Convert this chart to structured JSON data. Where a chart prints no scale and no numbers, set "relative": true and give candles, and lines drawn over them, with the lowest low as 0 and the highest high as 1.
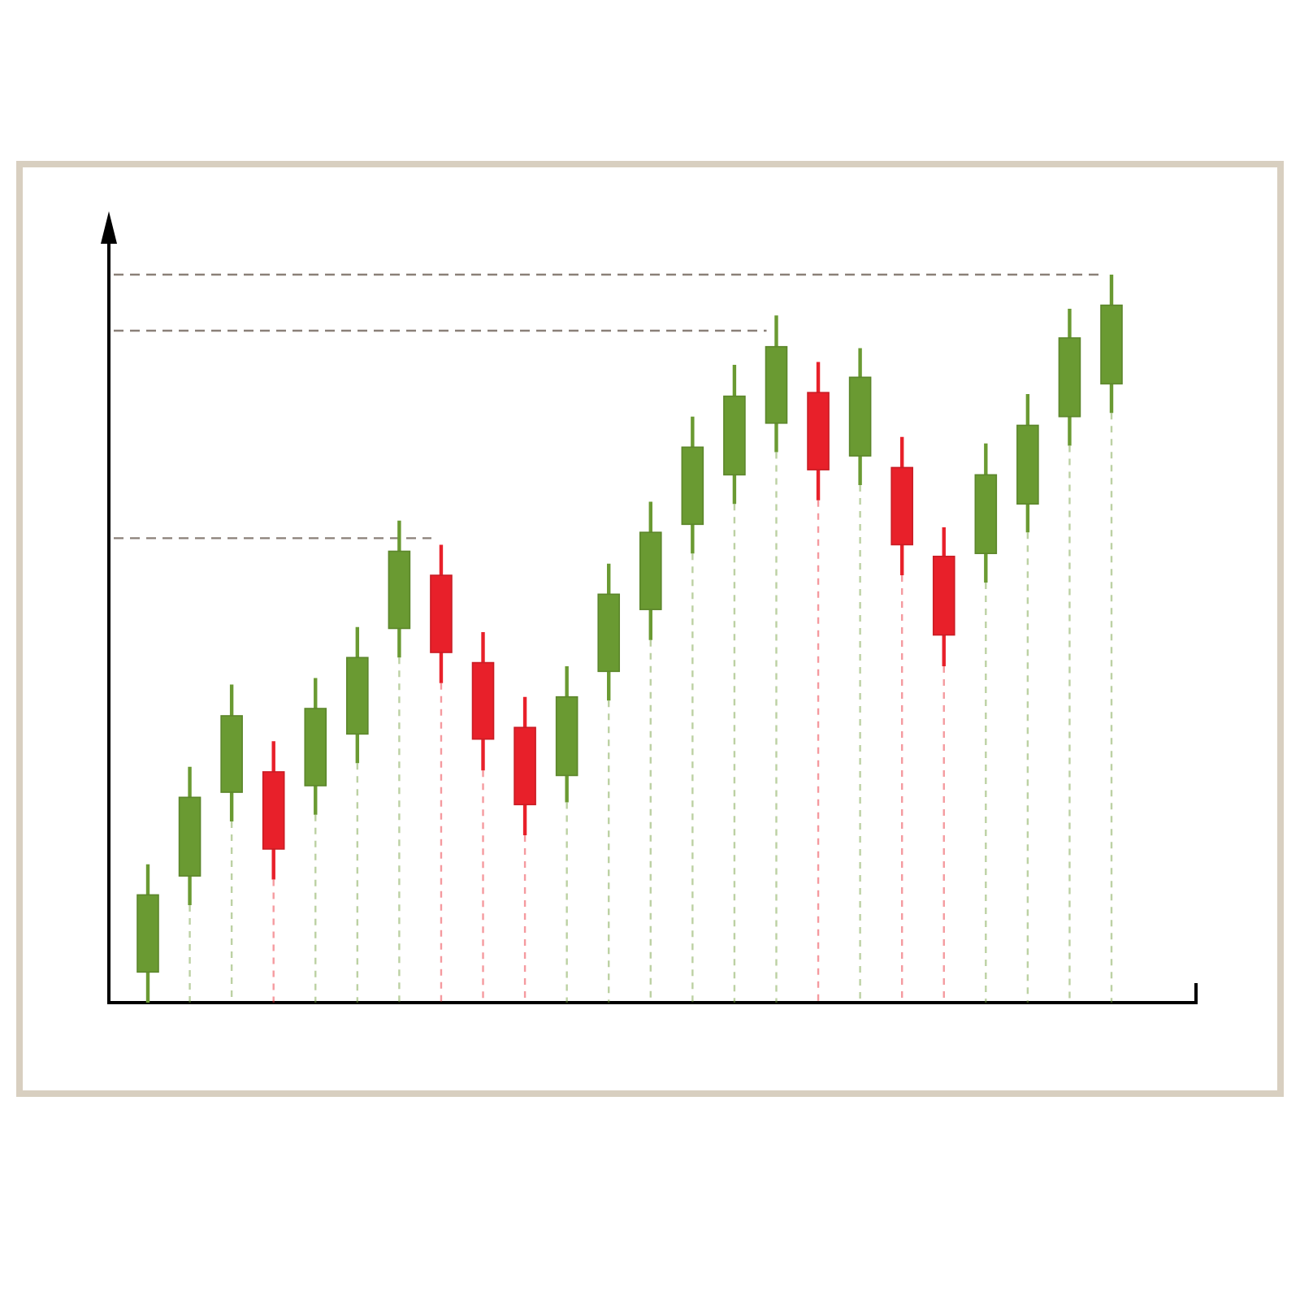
{
  "chart_data": {
    "type": "candlestick",
    "relative": true,
    "grid": "x",
    "categories": [
      null,
      null,
      null,
      null,
      null,
      null,
      null,
      null,
      null,
      null,
      null,
      null,
      null,
      null,
      null,
      null,
      null,
      null,
      null,
      null,
      null,
      null,
      null,
      null
    ],
    "ohlc": [
      [
        0.042,
        0.19,
        0,
        0.148
      ],
      [
        0.174,
        0.324,
        0.134,
        0.282
      ],
      [
        0.289,
        0.437,
        0.249,
        0.394
      ],
      [
        0.317,
        0.359,
        0.169,
        0.211
      ],
      [
        0.298,
        0.446,
        0.258,
        0.404
      ],
      [
        0.369,
        0.516,
        0.329,
        0.474
      ],
      [
        0.514,
        0.662,
        0.474,
        0.62
      ],
      [
        0.587,
        0.629,
        0.439,
        0.481
      ],
      [
        0.467,
        0.509,
        0.319,
        0.362
      ],
      [
        0.378,
        0.42,
        0.23,
        0.272
      ],
      [
        0.312,
        0.462,
        0.275,
        0.42
      ],
      [
        0.455,
        0.603,
        0.415,
        0.561
      ],
      [
        0.54,
        0.688,
        0.498,
        0.646
      ],
      [
        0.657,
        0.805,
        0.617,
        0.763
      ],
      [
        0.725,
        0.876,
        0.685,
        0.833
      ],
      [
        0.796,
        0.944,
        0.756,
        0.901
      ],
      [
        0.838,
        0.88,
        0.69,
        0.732
      ],
      [
        0.751,
        0.899,
        0.711,
        0.859
      ],
      [
        0.735,
        0.777,
        0.587,
        0.629
      ],
      [
        0.613,
        0.653,
        0.462,
        0.505
      ],
      [
        0.617,
        0.768,
        0.577,
        0.725
      ],
      [
        0.685,
        0.836,
        0.646,
        0.793
      ],
      [
        0.805,
        0.953,
        0.765,
        0.913
      ],
      [
        0.85,
        1,
        0.81,
        0.958
      ]
    ],
    "colors": [
      "#6a9a32",
      "#6a9a32",
      "#6a9a32",
      "#e8202a",
      "#6a9a32",
      "#6a9a32",
      "#6a9a32",
      "#e8202a",
      "#e8202a",
      "#e8202a",
      "#6a9a32",
      "#6a9a32",
      "#6a9a32",
      "#6a9a32",
      "#6a9a32",
      "#6a9a32",
      "#e8202a",
      "#6a9a32",
      "#e8202a",
      "#e8202a",
      "#6a9a32",
      "#6a9a32",
      "#6a9a32",
      "#6a9a32"
    ],
    "ref_lines": [
      {
        "axis": "y",
        "value": 0.638,
        "color": "#8a8078",
        "line_style": "dashed"
      },
      {
        "axis": "y",
        "value": 0.923,
        "color": "#8a8078",
        "line_style": "dashed"
      },
      {
        "axis": "y",
        "value": 1,
        "color": "#8a8078",
        "line_style": "dashed"
      }
    ]
  }
}
